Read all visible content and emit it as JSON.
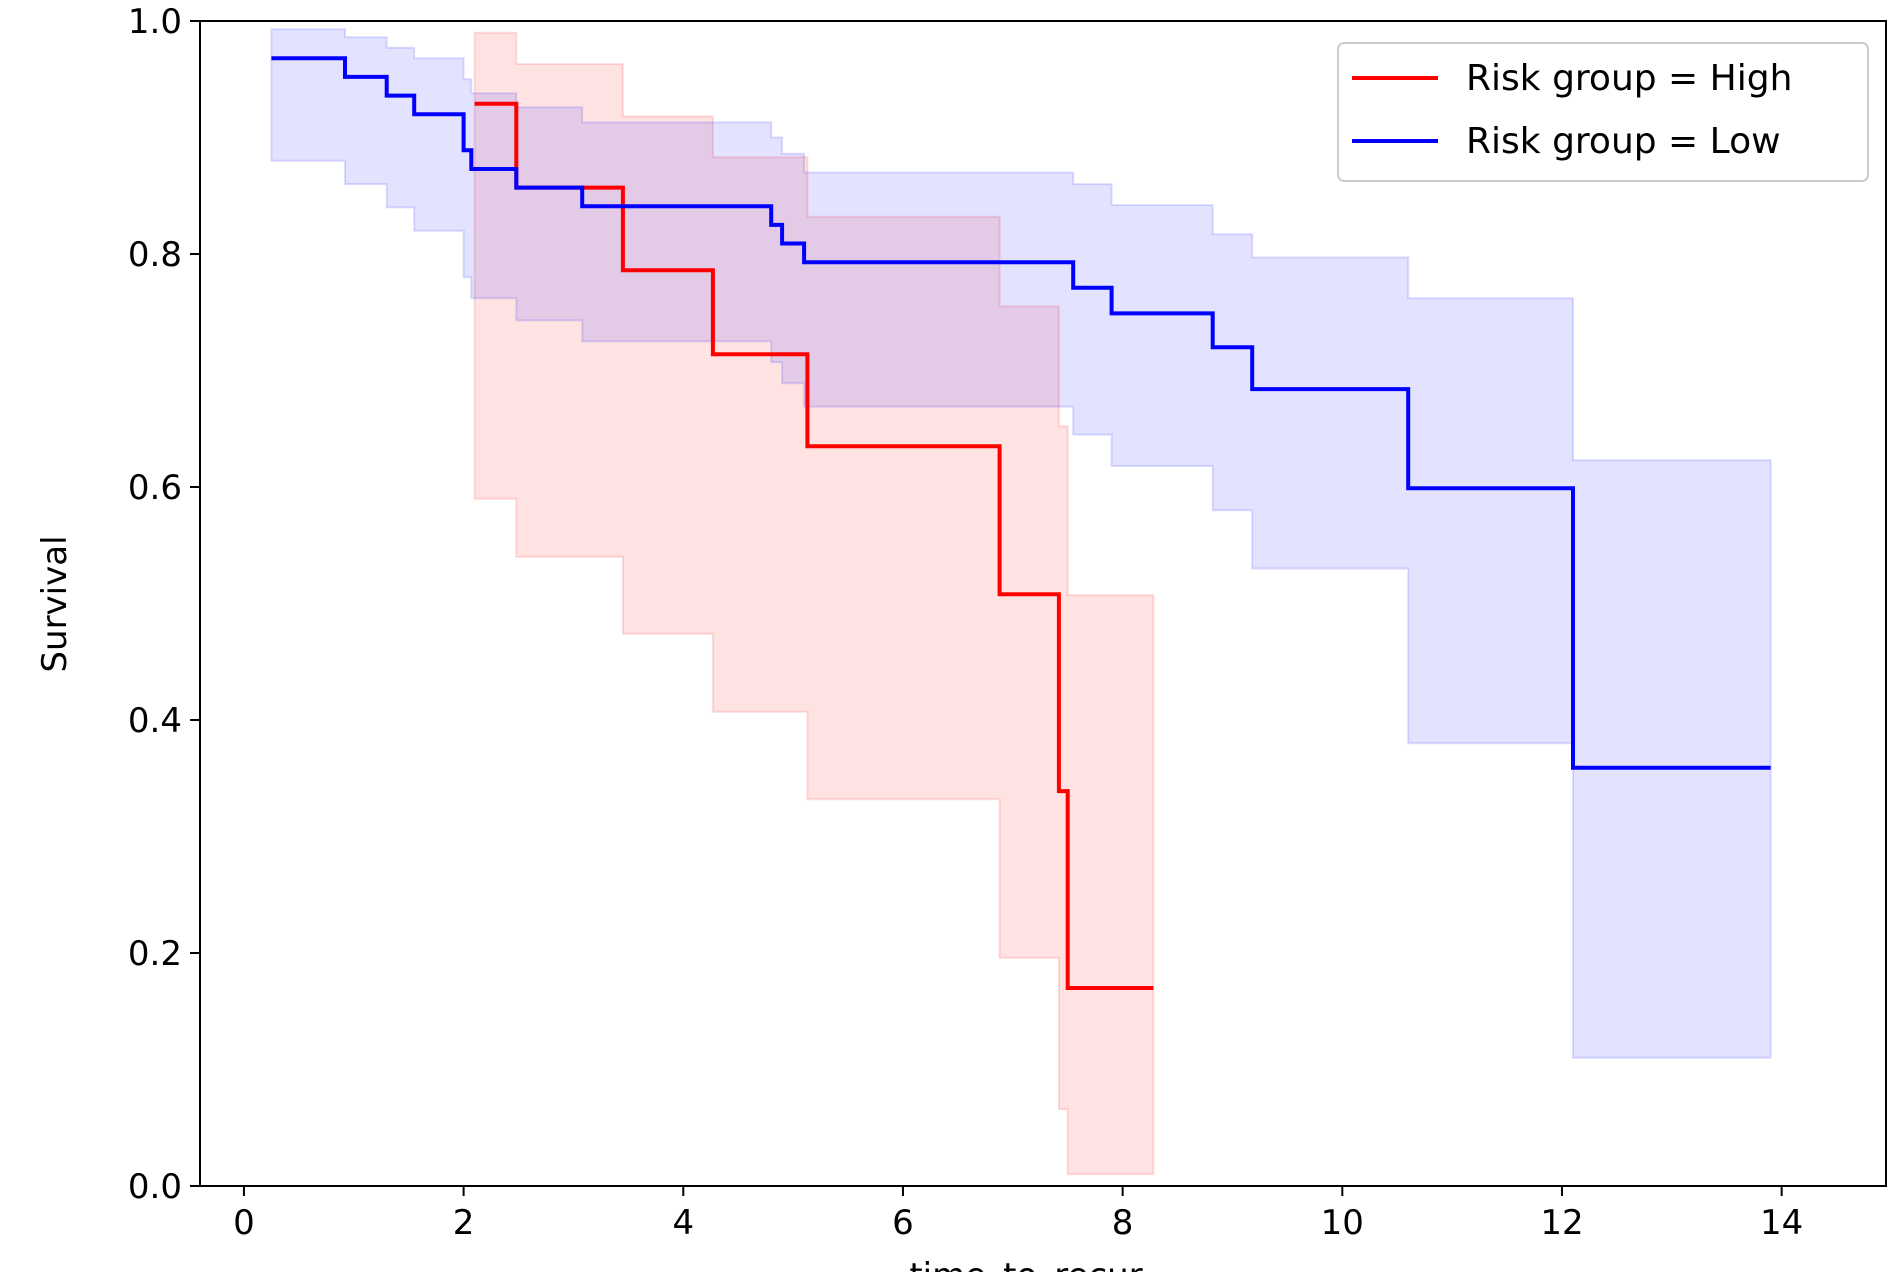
{
  "chart_data": {
    "type": "line",
    "title": "",
    "xlabel": "time_to_recur",
    "ylabel": "Survival",
    "xlim": [
      -0.4,
      14.95
    ],
    "ylim": [
      0,
      1.0
    ],
    "xticks": [
      "0",
      "2",
      "4",
      "6",
      "8",
      "10",
      "12",
      "14"
    ],
    "yticks": [
      "0.0",
      "0.2",
      "0.4",
      "0.6",
      "0.8",
      "1.0"
    ],
    "legend_position": "top-right",
    "step": true,
    "series": [
      {
        "name": "Risk group = High",
        "color": "#ff0000",
        "x": [
          2.1,
          2.48,
          3.45,
          4.27,
          5.13,
          6.88,
          7.42,
          7.5,
          8.28
        ],
        "y": [
          0.929,
          0.857,
          0.786,
          0.714,
          0.635,
          0.508,
          0.339,
          0.17,
          0.17
        ],
        "lower": [
          0.59,
          0.54,
          0.474,
          0.407,
          0.332,
          0.196,
          0.066,
          0.01,
          0.01
        ],
        "upper": [
          0.99,
          0.963,
          0.918,
          0.883,
          0.832,
          0.755,
          0.652,
          0.507,
          0.507
        ]
      },
      {
        "name": "Risk group = Low",
        "color": "#0000ff",
        "x": [
          0.25,
          0.92,
          1.3,
          1.55,
          2.0,
          2.07,
          2.48,
          3.08,
          4.8,
          4.9,
          5.1,
          7.55,
          7.9,
          8.82,
          9.18,
          10.6,
          12.1,
          13.9
        ],
        "y": [
          0.968,
          0.952,
          0.936,
          0.92,
          0.889,
          0.873,
          0.857,
          0.841,
          0.825,
          0.809,
          0.793,
          0.771,
          0.749,
          0.72,
          0.684,
          0.599,
          0.359,
          0.359
        ],
        "lower": [
          0.88,
          0.86,
          0.84,
          0.82,
          0.78,
          0.762,
          0.743,
          0.725,
          0.707,
          0.689,
          0.669,
          0.645,
          0.618,
          0.58,
          0.53,
          0.38,
          0.11,
          0.11
        ],
        "upper": [
          0.993,
          0.986,
          0.977,
          0.968,
          0.95,
          0.938,
          0.926,
          0.913,
          0.9,
          0.886,
          0.87,
          0.86,
          0.842,
          0.817,
          0.797,
          0.762,
          0.623,
          0.623
        ]
      }
    ]
  }
}
